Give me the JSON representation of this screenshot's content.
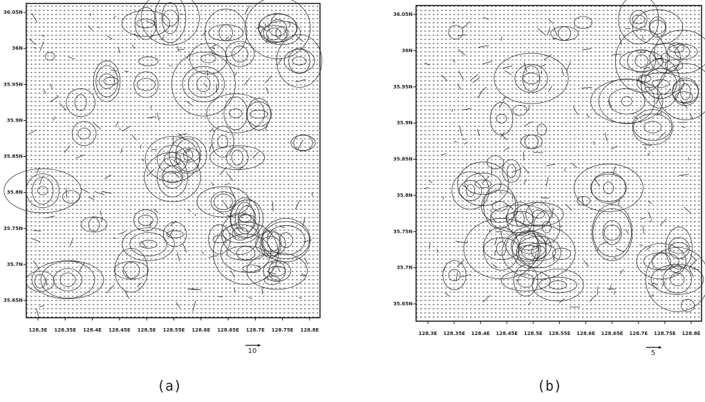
{
  "panels": [
    {
      "yticks": [
        "36.05N",
        "36N",
        "35.95N",
        "35.9N",
        "35.85N",
        "35.8N",
        "35.75N",
        "35.7N",
        "35.65N"
      ],
      "xticks": [
        "128.3E",
        "128.35E",
        "128.4E",
        "128.45E",
        "128.5E",
        "128.55E",
        "128.6E",
        "128.65E",
        "128.7E",
        "128.75E",
        "128.8E"
      ],
      "scale_label": "10",
      "caption": "(a)"
    },
    {
      "yticks": [
        "36.05N",
        "36N",
        "35.95N",
        "35.9N",
        "35.85N",
        "35.8N",
        "35.75N",
        "35.7N",
        "35.65N"
      ],
      "xticks": [
        "128.3E",
        "128.35E",
        "128.4E",
        "128.45E",
        "128.5E",
        "128.55E",
        "128.6E",
        "128.65E",
        "128.7E",
        "128.75E",
        "128.8E"
      ],
      "scale_label": "5",
      "caption": "(b)"
    }
  ]
}
